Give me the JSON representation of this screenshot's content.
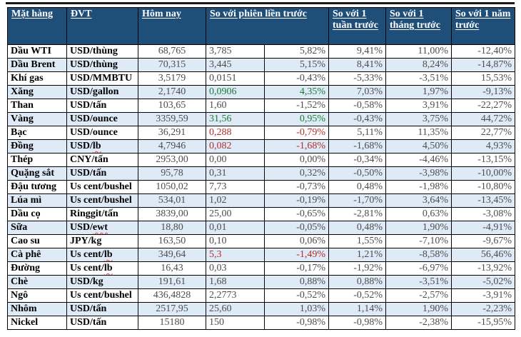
{
  "table": {
    "headers": {
      "item": "Mặt hàng",
      "unit": "ĐVT",
      "today": "Hôm nay",
      "vs_prev_session": "So với phiên liền trước",
      "vs_week": "So với 1 tuần trước",
      "vs_month": "So với 1 tháng trước",
      "vs_year": "So với 1 năm trước"
    },
    "colors": {
      "header_bg": "#1F4E79",
      "header_text": "#FFFFFF",
      "band_bg": "#DEEAF6",
      "value_gray": "#4D4D4D",
      "name_black": "#000000",
      "up_green": "#1E7B34",
      "down_red": "#B02F2A",
      "squiggle_red": "#E53935",
      "border_black": "#000000"
    },
    "rows": [
      {
        "name": "Dầu WTI",
        "unit_main": "USD/thùng",
        "unit_flagged": "",
        "today": "68,765",
        "change": "3,785",
        "change_pct": "5,82%",
        "week": "9,41%",
        "month": "11,00%",
        "year": "-12,40%",
        "change_color": "default"
      },
      {
        "name": "Dầu Brent",
        "unit_main": "USD/thùng",
        "unit_flagged": "",
        "today": "70,315",
        "change": "3,445",
        "change_pct": "5,15%",
        "week": "8,41%",
        "month": "8,24%",
        "year": "-14,87%",
        "change_color": "default"
      },
      {
        "name": "Khí gas",
        "unit_main": "USD/MMBTU",
        "unit_flagged": "",
        "today": "3,5179",
        "change": "0,0151",
        "change_pct": "-0,43%",
        "week": "-5,33%",
        "month": "-3,51%",
        "year": "15,53%",
        "change_color": "default"
      },
      {
        "name": "Xăng",
        "unit_main": "USD/gallon",
        "unit_flagged": "",
        "today": "2,1740",
        "change": "0,0906",
        "change_pct": "4,35%",
        "week": "7,03%",
        "month": "1,97%",
        "year": "-9,13%",
        "change_color": "up"
      },
      {
        "name": "Than",
        "unit_main": "USD/tấn",
        "unit_flagged": "",
        "today": "103,65",
        "change": "1,60",
        "change_pct": "-1,52%",
        "week": "-0,58%",
        "month": "3,91%",
        "year": "-22,27%",
        "change_color": "default"
      },
      {
        "name": "Vàng",
        "unit_main": "USD/ounce",
        "unit_flagged": "",
        "today": "3359,59",
        "change": "31,56",
        "change_pct": "0,95%",
        "week": "-0,43%",
        "month": "3,75%",
        "year": "44,72%",
        "change_color": "up"
      },
      {
        "name": "Bạc",
        "unit_main": "USD/ounce",
        "unit_flagged": "",
        "today": "36,291",
        "change": "0,288",
        "change_pct": "-0,79%",
        "week": "5,11%",
        "month": "11,35%",
        "year": "22,77%",
        "change_color": "down"
      },
      {
        "name": "Đồng",
        "unit_main": "USD/",
        "unit_flagged": "lb",
        "today": "4,7946",
        "change": "0,082",
        "change_pct": "-1,68%",
        "week": "-1,68%",
        "month": "4,50%",
        "year": "4,93%",
        "change_color": "down"
      },
      {
        "name": "Thép",
        "unit_main": "CNY/tấn",
        "unit_flagged": "",
        "today": "2953,00",
        "change": "0,00",
        "change_pct": "0,00%",
        "week": "-0,34%",
        "month": "-4,46%",
        "year": "-13,15%",
        "change_color": "default"
      },
      {
        "name": "Quặng sắt",
        "unit_main": "USD/tấn",
        "unit_flagged": "",
        "today": "95,78",
        "change": "0,31",
        "change_pct": "0,32%",
        "week": "-0,50%",
        "month": "-3,98%",
        "year": "-10,00%",
        "change_color": "default"
      },
      {
        "name": "Đậu tương",
        "unit_main": "Us cent/bushel",
        "unit_flagged": "",
        "today": "1050,02",
        "change": "7,73",
        "change_pct": "-0,73%",
        "week": "0,48%",
        "month": "-1,98%",
        "year": "-10,80%",
        "change_color": "default"
      },
      {
        "name": "Lúa mì",
        "unit_main": "Us cent/bushel",
        "unit_flagged": "",
        "today": "534,01",
        "change": "1,02",
        "change_pct": "-0,19%",
        "week": "-1,70%",
        "month": "3,64%",
        "year": "-13,45%",
        "change_color": "default"
      },
      {
        "name": "Dầu cọ",
        "unit_main": "Ringgit/tấn",
        "unit_flagged": "",
        "today": "3839,00",
        "change": "25,00",
        "change_pct": "-0,65%",
        "week": "-2,81%",
        "month": "0,63%",
        "year": "-3,08%",
        "change_color": "default"
      },
      {
        "name": "Sữa",
        "unit_main": "USD/",
        "unit_flagged": "ewt",
        "today": "18,80",
        "change": "0,01",
        "change_pct": "-0,05%",
        "week": "0,48%",
        "month": "1,90%",
        "year": "-4,91%",
        "change_color": "default"
      },
      {
        "name": "Cao su",
        "unit_main": "JPY/kg",
        "unit_flagged": "",
        "today": "163,50",
        "change": "0,10",
        "change_pct": "0,06%",
        "week": "1,55%",
        "month": "-7,10%",
        "year": "-9,67%",
        "change_color": "default"
      },
      {
        "name": "Cà phê",
        "unit_main": "Us cent/",
        "unit_flagged": "lb",
        "today": "349,64",
        "change": "5,3",
        "change_pct": "-1,49%",
        "week": "1,21%",
        "month": "-8,58%",
        "year": "56,46%",
        "change_color": "down"
      },
      {
        "name": "Đường",
        "unit_main": "Us cent/",
        "unit_flagged": "lb",
        "today": "16,43",
        "change": "0,03",
        "change_pct": "-0,17%",
        "week": "-1,92%",
        "month": "-6,97%",
        "year": "-13,92%",
        "change_color": "default"
      },
      {
        "name": "Chè",
        "unit_main": "USD/kg",
        "unit_flagged": "",
        "today": "191,61",
        "change": "1,68",
        "change_pct": "0,88%",
        "week": "0,88%",
        "month": "-3,51%",
        "year": "-5,02%",
        "change_color": "default"
      },
      {
        "name": "Ngô",
        "unit_main": "Us cent/bushel",
        "unit_flagged": "",
        "today": "436,4828",
        "change": "2,2773",
        "change_pct": "-0,52%",
        "week": "-0,52%",
        "month": "-2,57%",
        "year": "-3,91%",
        "change_color": "default"
      },
      {
        "name": "Nhôm",
        "unit_main": "USD/tấn",
        "unit_flagged": "",
        "today": "2517,95",
        "change": "25,60",
        "change_pct": "1,03%",
        "week": "1,14%",
        "month": "1,90%",
        "year": "-2,23%",
        "change_color": "default"
      },
      {
        "name": "Nickel",
        "unit_main": "USD/tấn",
        "unit_flagged": "",
        "today": "15180",
        "change": "150",
        "change_pct": "-0,98%",
        "week": "-0,98%",
        "month": "-2,38%",
        "year": "-15,95%",
        "change_color": "default"
      }
    ]
  }
}
